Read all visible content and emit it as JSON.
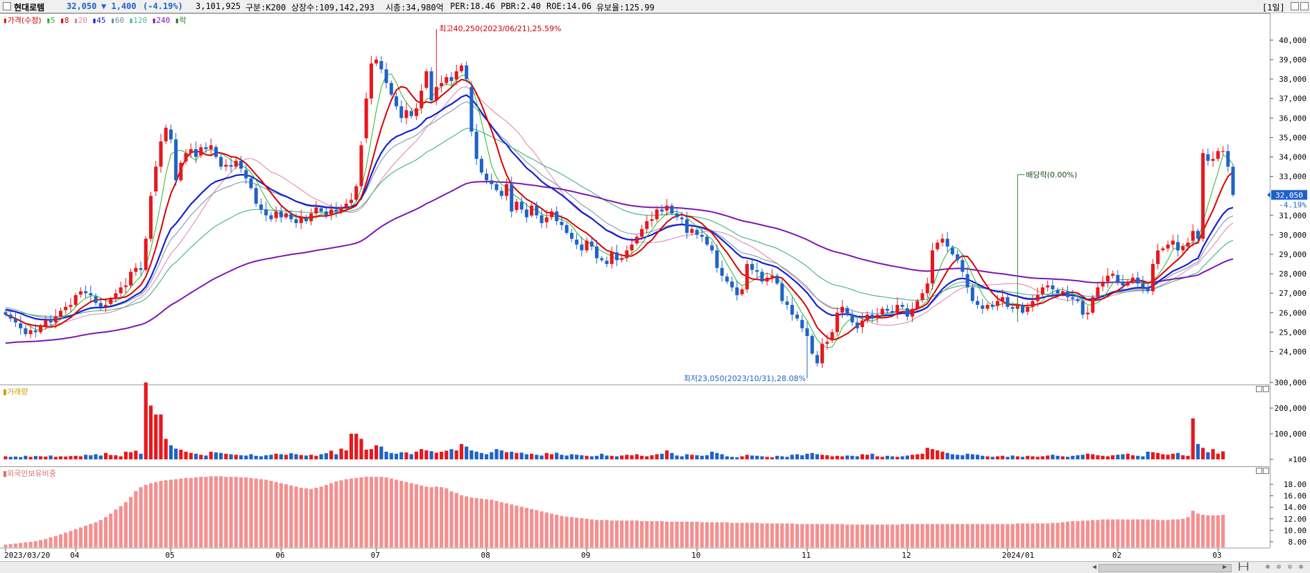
{
  "header": {
    "name": "현대로템",
    "price": "32,050",
    "change": "▼ 1,400",
    "change_pct": "(-4.19%)",
    "volume": "3,101,925",
    "market": "구분:K200",
    "shares": "상장수:109,142,293",
    "mcap": "시총:34,980억",
    "per": "PER:18.46",
    "pbr": "PBR:2.40",
    "roe": "ROE:14.06",
    "float": "유보율:125.99",
    "period": "1일"
  },
  "legend": {
    "price_label": "가격(수정)",
    "ma": [
      "5",
      "8",
      "20",
      "45",
      "60",
      "120",
      "240"
    ],
    "ex_label": "락",
    "volume_label": "거래량",
    "foreign_label": "외국인보유비중"
  },
  "annotations": {
    "high": "최고40,250(2023/06/21),25.59%",
    "low": "최저23,050(2023/10/31),28.08%",
    "dividend": "배당락(0.00%)"
  },
  "price_tag": {
    "value": "32,050",
    "pct": "-4.19%"
  },
  "axis": {
    "price_ticks": [
      "24,000",
      "25,000",
      "26,000",
      "27,000",
      "28,000",
      "29,000",
      "30,000",
      "31,000",
      "33,000",
      "34,000",
      "35,000",
      "36,000",
      "37,000",
      "38,000",
      "39,000",
      "40,000"
    ],
    "volume_ticks": [
      "300,000",
      "200,000",
      "100,000",
      "×100"
    ],
    "foreign_ticks": [
      "18.00",
      "16.00",
      "14.00",
      "12.00",
      "10.00",
      "8.00"
    ],
    "date_labels": [
      "2023/03/20",
      "04",
      "05",
      "06",
      "07",
      "08",
      "09",
      "10",
      "11",
      "12",
      "2024/01",
      "02",
      "03"
    ]
  },
  "colors": {
    "up": "#e8171c",
    "down": "#1e63c8",
    "ma5": "#27b52a",
    "ma8": "#d70000",
    "ma20": "#de7fa8",
    "ma45": "#1422d0",
    "ma60": "#6e8fa8",
    "ma120": "#4fb58a",
    "ma240": "#7f14b4",
    "foreign": "#f49090"
  },
  "chart_data": {
    "type": "candlestick",
    "title": "현대로템",
    "interval": "1일",
    "date_range": [
      "2023/03/20",
      "2024/03/04"
    ],
    "high_point": {
      "value": 40250,
      "date": "2023/06/21"
    },
    "low_point": {
      "value": 23050,
      "date": "2023/10/31"
    },
    "last_close": 32050,
    "ylim_price": [
      23000,
      40500
    ],
    "close_series": [
      25900,
      25700,
      25500,
      25200,
      24900,
      25100,
      25000,
      25300,
      25600,
      25500,
      25800,
      26100,
      26300,
      26400,
      26900,
      27100,
      27000,
      26900,
      26500,
      26300,
      26400,
      26700,
      27000,
      27300,
      27400,
      28100,
      28300,
      28200,
      29800,
      32000,
      33500,
      34800,
      35500,
      34900,
      32800,
      33700,
      34200,
      34400,
      34000,
      34500,
      34400,
      34600,
      34000,
      33500,
      33600,
      33500,
      33800,
      33400,
      32900,
      32400,
      31600,
      31300,
      31000,
      30800,
      31200,
      30900,
      31100,
      30800,
      30600,
      30900,
      30700,
      31100,
      31400,
      31200,
      31000,
      31300,
      31200,
      31400,
      31600,
      31800,
      32500,
      34600,
      37000,
      38800,
      39000,
      38500,
      37800,
      37200,
      36600,
      36000,
      36400,
      36100,
      36500,
      37400,
      38400,
      36900,
      37600,
      37800,
      38100,
      37900,
      38400,
      38700,
      38000,
      35300,
      33900,
      33200,
      32800,
      32600,
      32300,
      32000,
      32600,
      31200,
      31700,
      31300,
      30900,
      31500,
      31000,
      30600,
      30900,
      31200,
      30700,
      30500,
      30100,
      29800,
      29500,
      29200,
      29700,
      29400,
      28800,
      28700,
      28500,
      29100,
      28700,
      28800,
      29200,
      29500,
      29900,
      30300,
      30700,
      30800,
      31300,
      31200,
      31500,
      31100,
      30900,
      30800,
      30100,
      30300,
      30000,
      29900,
      29500,
      29200,
      28300,
      27900,
      27600,
      27300,
      26900,
      27200,
      28500,
      28200,
      28100,
      27600,
      27800,
      27900,
      27500,
      26600,
      26400,
      25900,
      25700,
      25200,
      24800,
      23900,
      23400,
      24400,
      24500,
      25000,
      26000,
      26300,
      25900,
      25500,
      25200,
      25600,
      25900,
      25700,
      25900,
      26200,
      26100,
      26000,
      26400,
      26300,
      25800,
      26200,
      26600,
      27000,
      27500,
      29200,
      29600,
      29800,
      29400,
      29000,
      28700,
      28100,
      27300,
      26600,
      26400,
      26200,
      26400,
      26300,
      26600,
      26800,
      26300,
      26200,
      26400,
      26000,
      26300,
      26600,
      26900,
      27300,
      27400,
      27200,
      27000,
      27100,
      26800,
      26700,
      26600,
      25900,
      26000,
      26800,
      27300,
      27600,
      27900,
      28000,
      27600,
      27400,
      27600,
      27800,
      27500,
      27300,
      27100,
      28500,
      29200,
      29300,
      29500,
      29700,
      29200,
      29400,
      29600,
      30200,
      29800,
      34200,
      33800,
      33900,
      34300,
      34300,
      33500,
      32050
    ],
    "volume_series_x100": [
      12000,
      10000,
      11000,
      9000,
      14000,
      10000,
      13000,
      12000,
      11000,
      15000,
      10000,
      12000,
      11000,
      13000,
      14000,
      12000,
      18000,
      16000,
      20000,
      15000,
      25000,
      17000,
      16000,
      12000,
      30000,
      28000,
      34000,
      22000,
      300000,
      210000,
      175000,
      175000,
      80000,
      55000,
      42000,
      38000,
      30000,
      25000,
      22000,
      18000,
      15000,
      30000,
      27000,
      25000,
      22000,
      20000,
      18000,
      16000,
      15000,
      20000,
      14000,
      12000,
      16000,
      18000,
      22000,
      20000,
      18000,
      24000,
      20000,
      17000,
      15000,
      18000,
      14000,
      20000,
      24000,
      34000,
      20000,
      42000,
      35000,
      100000,
      100000,
      80000,
      38000,
      40000,
      55000,
      50000,
      30000,
      25000,
      22000,
      28000,
      27000,
      20000,
      30000,
      40000,
      35000,
      32000,
      26000,
      30000,
      34000,
      40000,
      35000,
      60000,
      50000,
      35000,
      30000,
      25000,
      20000,
      28000,
      40000,
      35000,
      28000,
      30000,
      25000,
      26000,
      20000,
      22000,
      18000,
      15000,
      25000,
      20000,
      26000,
      18000,
      15000,
      20000,
      18000,
      16000,
      14000,
      12000,
      14000,
      22000,
      15000,
      14000,
      12000,
      15000,
      18000,
      16000,
      20000,
      14000,
      12000,
      16000,
      20000,
      22000,
      35000,
      25000,
      15000,
      12000,
      20000,
      18000,
      16000,
      14000,
      16000,
      30000,
      25000,
      20000,
      12000,
      10000,
      8000,
      12000,
      18000,
      15000,
      14000,
      12000,
      10000,
      8000,
      14000,
      12000,
      10000,
      18000,
      20000,
      16000,
      22000,
      25000,
      20000,
      18000,
      16000,
      12000,
      14000,
      12000,
      15000,
      14000,
      12000,
      20000,
      18000,
      22000,
      12000,
      10000,
      14000,
      12000,
      10000,
      12000,
      15000,
      18000,
      20000,
      22000,
      45000,
      40000,
      35000,
      30000,
      25000,
      20000,
      18000,
      16000,
      22000,
      20000,
      18000,
      14000,
      12000,
      10000,
      12000,
      14000,
      10000,
      15000,
      12000,
      10000,
      14000,
      12000,
      10000,
      12000,
      15000,
      18000,
      14000,
      12000,
      10000,
      14000,
      16000,
      18000,
      22000,
      20000,
      16000,
      14000,
      12000,
      16000,
      18000,
      20000,
      22000,
      16000,
      14000,
      12000,
      30000,
      28000,
      25000,
      20000,
      18000,
      22000,
      25000,
      16000,
      14000,
      160000,
      60000,
      45000,
      28000,
      40000,
      22000,
      31019
    ],
    "foreign_ratio_pct": [
      7.5,
      7.6,
      7.7,
      7.8,
      7.9,
      8.0,
      8.1,
      8.3,
      8.5,
      8.8,
      9.0,
      9.3,
      9.6,
      9.9,
      10.2,
      10.5,
      10.8,
      11.1,
      11.4,
      11.8,
      12.3,
      12.9,
      13.6,
      14.2,
      14.9,
      15.8,
      16.8,
      17.5,
      17.9,
      18.2,
      18.4,
      18.6,
      18.7,
      18.8,
      18.9,
      19.0,
      19.1,
      19.1,
      19.2,
      19.3,
      19.3,
      19.4,
      19.4,
      19.4,
      19.3,
      19.3,
      19.3,
      19.2,
      19.2,
      19.1,
      19.0,
      18.9,
      18.8,
      18.6,
      18.4,
      18.2,
      18.0,
      17.8,
      17.6,
      17.4,
      17.3,
      17.2,
      17.4,
      17.6,
      17.9,
      18.2,
      18.5,
      18.7,
      18.9,
      19.0,
      19.1,
      19.2,
      19.3,
      19.3,
      19.3,
      19.3,
      19.2,
      19.0,
      18.8,
      18.6,
      18.4,
      18.2,
      18.0,
      17.8,
      17.6,
      17.5,
      17.6,
      17.5,
      17.3,
      16.8,
      16.5,
      16.1,
      15.9,
      15.7,
      15.6,
      15.5,
      15.4,
      15.3,
      15.1,
      14.9,
      14.7,
      14.5,
      14.3,
      14.1,
      13.9,
      13.7,
      13.5,
      13.3,
      13.1,
      12.9,
      12.7,
      12.5,
      12.4,
      12.3,
      12.2,
      12.1,
      12.0,
      11.9,
      11.8,
      11.8,
      11.8,
      11.7,
      11.7,
      11.7,
      11.7,
      11.7,
      11.7,
      11.6,
      11.6,
      11.6,
      11.6,
      11.6,
      11.5,
      11.5,
      11.5,
      11.5,
      11.5,
      11.5,
      11.5,
      11.4,
      11.4,
      11.4,
      11.4,
      11.4,
      11.4,
      11.3,
      11.3,
      11.3,
      11.3,
      11.3,
      11.3,
      11.2,
      11.2,
      11.2,
      11.2,
      11.2,
      11.2,
      11.2,
      11.1,
      11.1,
      11.1,
      11.1,
      11.1,
      11.1,
      11.1,
      11.1,
      11.1,
      11.1,
      11.0,
      11.0,
      11.0,
      11.0,
      11.0,
      11.0,
      11.0,
      11.0,
      11.0,
      11.0,
      11.0,
      11.1,
      11.1,
      11.1,
      11.1,
      11.1,
      11.1,
      11.1,
      11.1,
      11.1,
      11.1,
      11.1,
      11.1,
      11.1,
      11.1,
      11.1,
      11.1,
      11.1,
      11.1,
      11.1,
      11.1,
      11.1,
      11.1,
      11.1,
      11.2,
      11.2,
      11.2,
      11.2,
      11.2,
      11.2,
      11.2,
      11.3,
      11.3,
      11.4,
      11.5,
      11.6,
      11.6,
      11.7,
      11.7,
      11.8,
      11.8,
      11.9,
      11.9,
      11.9,
      11.9,
      11.9,
      11.9,
      11.9,
      11.9,
      11.9,
      11.9,
      11.9,
      11.8,
      11.8,
      11.8,
      11.9,
      11.9,
      12.0,
      12.3,
      13.4,
      12.9,
      12.7,
      12.6,
      12.6,
      12.6,
      12.7
    ]
  }
}
